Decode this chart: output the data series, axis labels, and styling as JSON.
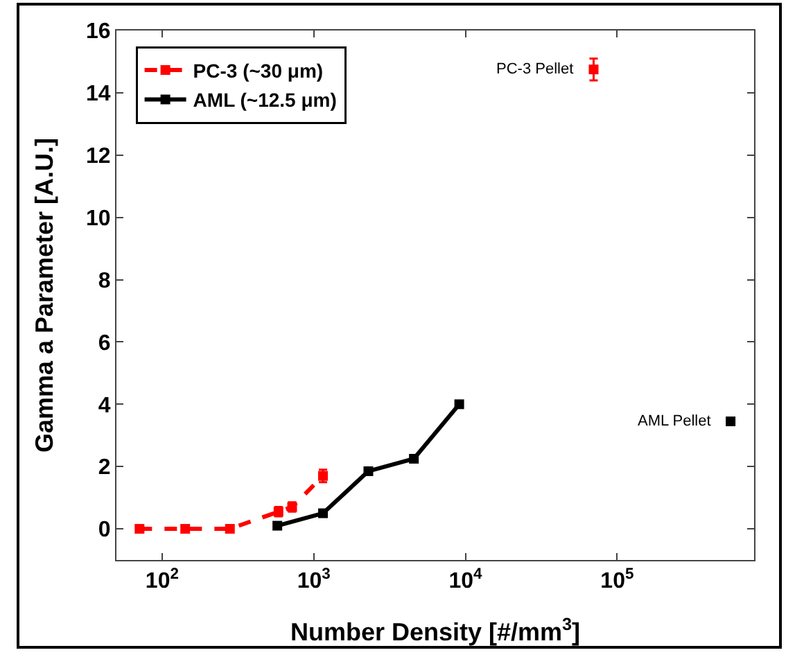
{
  "chart_data": {
    "type": "line",
    "xlabel": "Number Density [#/mm$^{3}$]",
    "ylabel": "Gamma a Parameter [A.U.]",
    "log": "x",
    "xlim": [
      50,
      800000
    ],
    "ylim": [
      -1,
      16
    ],
    "xticks": [
      {
        "value": 100,
        "label": "10$^{2}$"
      },
      {
        "value": 1000,
        "label": "10$^{3}$"
      },
      {
        "value": 10000,
        "label": "10$^{4}$"
      },
      {
        "value": 100000,
        "label": "10$^{5}$"
      }
    ],
    "yticks": [
      0,
      2,
      4,
      6,
      8,
      10,
      12,
      14,
      16
    ],
    "grid": false,
    "legend": "top left",
    "marker": "square",
    "series": [
      {
        "name": "PC-3 (~30 μm)",
        "color": "#ff0000",
        "line_style": "dashed",
        "x": [
          71,
          142,
          280,
          585,
          720,
          1150
        ],
        "values": [
          0,
          0,
          0,
          0.55,
          0.7,
          1.7
        ],
        "errors": [
          null,
          null,
          null,
          [
            0.4,
            0.7
          ],
          [
            0.55,
            0.85
          ],
          [
            1.5,
            1.9
          ]
        ]
      },
      {
        "name": "AML (~12.5 μm)",
        "color": "#000000",
        "line_style": "solid",
        "x": [
          575,
          1150,
          2290,
          4570,
          9100
        ],
        "values": [
          0.1,
          0.5,
          1.85,
          2.25,
          4.0
        ]
      },
      {
        "type": "scatter",
        "color": "#ff0000",
        "x": [
          70000
        ],
        "values": [
          14.75
        ],
        "errors": [
          [
            14.4,
            15.1
          ]
        ]
      },
      {
        "type": "scatter",
        "color": "#000000",
        "x": [
          560000
        ],
        "values": [
          3.45
        ]
      }
    ],
    "annotations": [
      {
        "text": "PC-3 Pellet",
        "x": 70000,
        "y": 14.75
      },
      {
        "text": "AML Pellet",
        "x": 560000,
        "y": 3.45
      }
    ]
  }
}
